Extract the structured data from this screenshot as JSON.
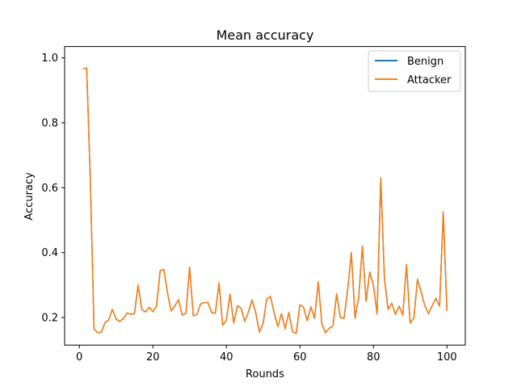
{
  "chart_data": {
    "type": "line",
    "title": "Mean accuracy",
    "xlabel": "Rounds",
    "ylabel": "Accuracy",
    "xlim": [
      -4,
      105
    ],
    "ylim": [
      0.115,
      1.035
    ],
    "xticks": [
      0,
      20,
      40,
      60,
      80,
      100
    ],
    "yticks": [
      0.2,
      0.4,
      0.6,
      0.8,
      1.0
    ],
    "grid": false,
    "legend_position": "top-right",
    "x": [
      1,
      2,
      3,
      4,
      5,
      6,
      7,
      8,
      9,
      10,
      11,
      12,
      13,
      14,
      15,
      16,
      17,
      18,
      19,
      20,
      21,
      22,
      23,
      24,
      25,
      26,
      27,
      28,
      29,
      30,
      31,
      32,
      33,
      34,
      35,
      36,
      37,
      38,
      39,
      40,
      41,
      42,
      43,
      44,
      45,
      46,
      47,
      48,
      49,
      50,
      51,
      52,
      53,
      54,
      55,
      56,
      57,
      58,
      59,
      60,
      61,
      62,
      63,
      64,
      65,
      66,
      67,
      68,
      69,
      70,
      71,
      72,
      73,
      74,
      75,
      76,
      77,
      78,
      79,
      80,
      81,
      82,
      83,
      84,
      85,
      86,
      87,
      88,
      89,
      90,
      91,
      92,
      93,
      94,
      95,
      96,
      97,
      98,
      99,
      100
    ],
    "series": [
      {
        "name": "Benign",
        "color": "#1f77b4",
        "values": [
          0.966,
          0.969,
          0.62,
          0.165,
          0.153,
          0.155,
          0.185,
          0.193,
          0.225,
          0.195,
          0.188,
          0.197,
          0.214,
          0.21,
          0.212,
          0.3,
          0.225,
          0.217,
          0.232,
          0.218,
          0.235,
          0.345,
          0.348,
          0.275,
          0.22,
          0.236,
          0.255,
          0.207,
          0.214,
          0.355,
          0.205,
          0.21,
          0.242,
          0.246,
          0.246,
          0.215,
          0.213,
          0.307,
          0.176,
          0.191,
          0.272,
          0.183,
          0.236,
          0.229,
          0.188,
          0.217,
          0.254,
          0.214,
          0.155,
          0.182,
          0.257,
          0.265,
          0.214,
          0.172,
          0.212,
          0.165,
          0.216,
          0.156,
          0.151,
          0.239,
          0.232,
          0.19,
          0.233,
          0.197,
          0.31,
          0.178,
          0.153,
          0.167,
          0.174,
          0.273,
          0.2,
          0.198,
          0.285,
          0.4,
          0.198,
          0.262,
          0.42,
          0.25,
          0.34,
          0.3,
          0.211,
          0.63,
          0.32,
          0.225,
          0.244,
          0.21,
          0.235,
          0.207,
          0.363,
          0.183,
          0.198,
          0.318,
          0.278,
          0.236,
          0.212,
          0.237,
          0.259,
          0.235,
          0.526,
          0.22
        ]
      },
      {
        "name": "Attacker",
        "color": "#ff7f0e",
        "values": [
          0.966,
          0.969,
          0.62,
          0.165,
          0.153,
          0.155,
          0.185,
          0.193,
          0.225,
          0.195,
          0.188,
          0.197,
          0.214,
          0.21,
          0.212,
          0.3,
          0.225,
          0.217,
          0.232,
          0.218,
          0.235,
          0.345,
          0.348,
          0.275,
          0.22,
          0.236,
          0.255,
          0.207,
          0.214,
          0.355,
          0.205,
          0.21,
          0.242,
          0.246,
          0.246,
          0.215,
          0.213,
          0.307,
          0.176,
          0.191,
          0.272,
          0.183,
          0.236,
          0.229,
          0.188,
          0.217,
          0.254,
          0.214,
          0.155,
          0.182,
          0.257,
          0.265,
          0.214,
          0.172,
          0.212,
          0.165,
          0.216,
          0.156,
          0.151,
          0.239,
          0.232,
          0.19,
          0.233,
          0.197,
          0.31,
          0.178,
          0.153,
          0.167,
          0.174,
          0.273,
          0.2,
          0.198,
          0.285,
          0.4,
          0.198,
          0.262,
          0.42,
          0.25,
          0.34,
          0.3,
          0.211,
          0.63,
          0.32,
          0.225,
          0.244,
          0.21,
          0.235,
          0.207,
          0.363,
          0.183,
          0.198,
          0.318,
          0.278,
          0.236,
          0.212,
          0.237,
          0.259,
          0.235,
          0.526,
          0.22
        ]
      }
    ]
  }
}
